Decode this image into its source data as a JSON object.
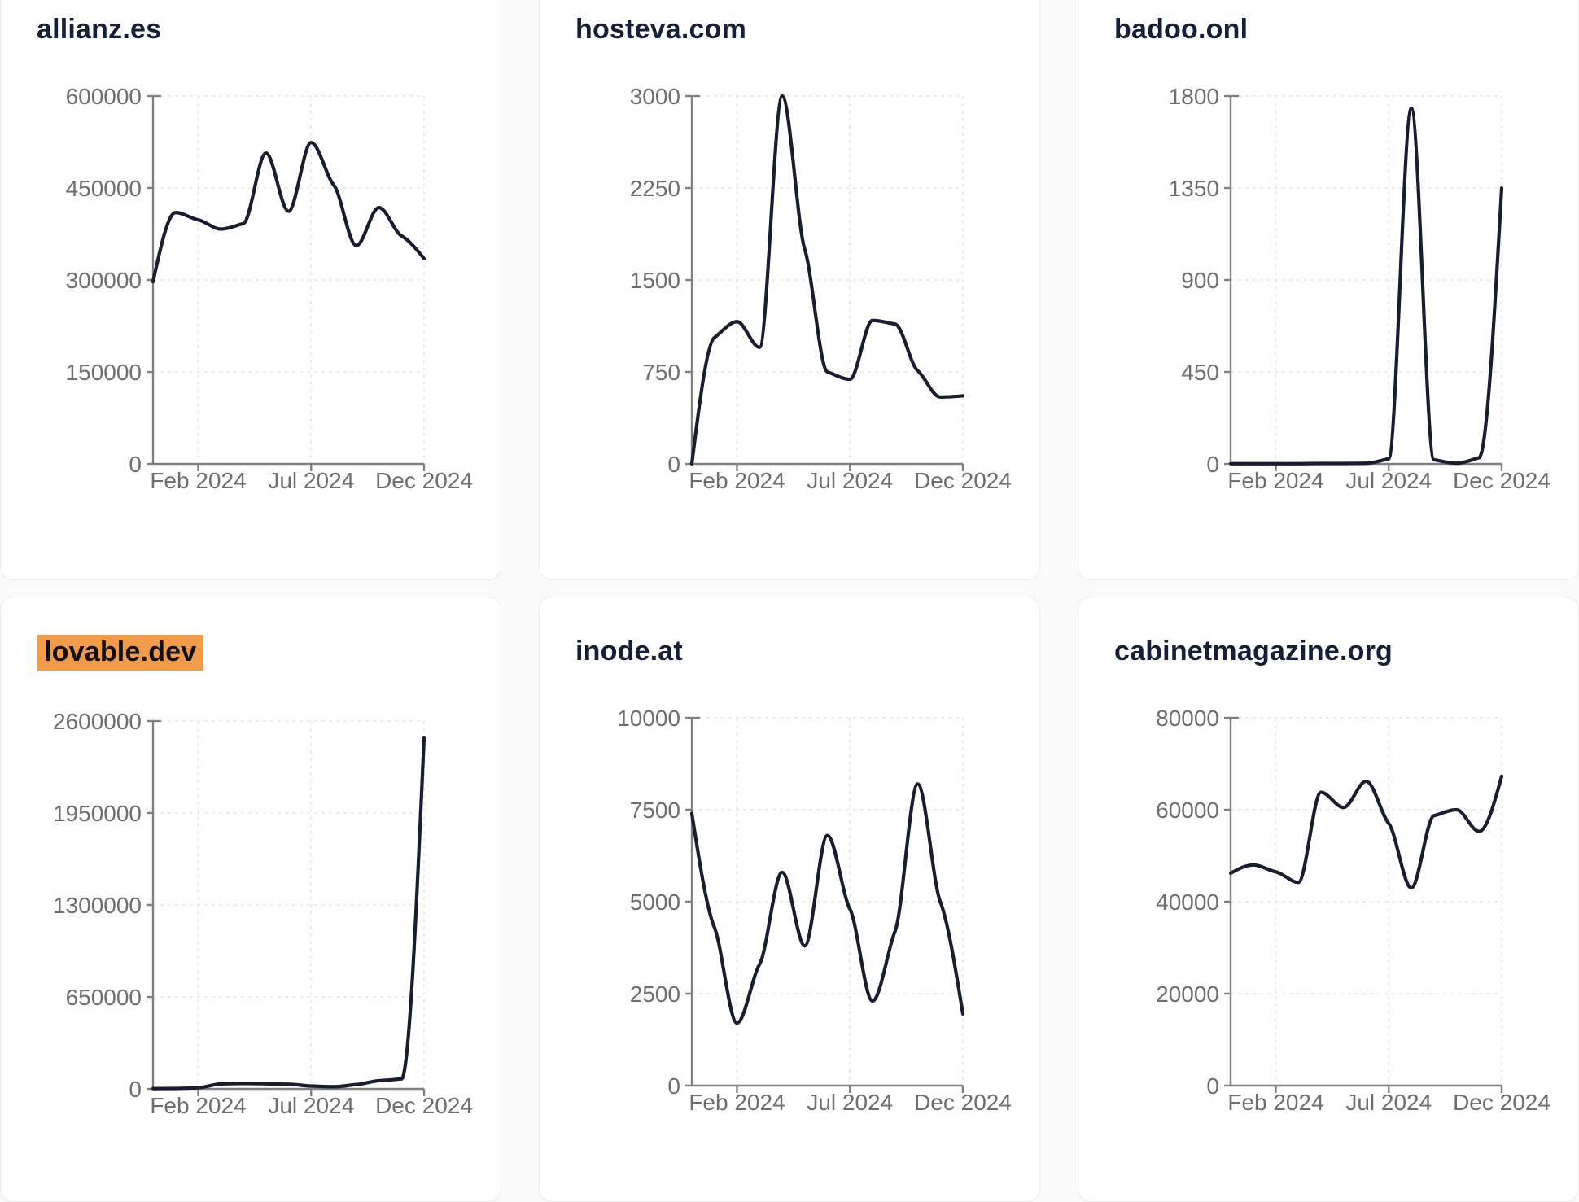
{
  "page": {
    "background_color": "#fafafa",
    "card_background": "#ffffff",
    "card_border_color": "#ececec"
  },
  "style": {
    "line_color": "#181e30",
    "axis_color": "#808080",
    "grid_color": "#e5e5e5",
    "tick_label_color": "#6e6e6e",
    "title_color": "#161f38",
    "highlight_color": "#ef9b4a"
  },
  "chart_data": [
    {
      "type": "line",
      "title": "allianz.es",
      "title_highlighted": false,
      "x": [
        "Dec 2023",
        "Jan 2024",
        "Feb 2024",
        "Mar 2024",
        "Apr 2024",
        "May 2024",
        "Jun 2024",
        "Jul 2024",
        "Aug 2024",
        "Sep 2024",
        "Oct 2024",
        "Nov 2024",
        "Dec 2024"
      ],
      "values": [
        297000,
        410000,
        398000,
        383000,
        392000,
        507000,
        412000,
        524000,
        455000,
        356000,
        418000,
        372000,
        335000
      ],
      "ylim": [
        0,
        600000
      ],
      "y_ticks": [
        0,
        150000,
        300000,
        450000,
        600000
      ],
      "x_tick_labels": [
        "Feb 2024",
        "Jul 2024",
        "Dec 2024"
      ],
      "x_tick_positions": [
        2,
        7,
        12
      ],
      "grid": true,
      "legend": "none"
    },
    {
      "type": "line",
      "title": "hosteva.com",
      "title_highlighted": false,
      "x": [
        "Dec 2023",
        "Jan 2024",
        "Feb 2024",
        "Mar 2024",
        "Apr 2024",
        "May 2024",
        "Jun 2024",
        "Jul 2024",
        "Aug 2024",
        "Sep 2024",
        "Oct 2024",
        "Nov 2024",
        "Dec 2024"
      ],
      "values": [
        0,
        1030,
        1160,
        950,
        3000,
        1750,
        750,
        690,
        1170,
        1140,
        760,
        545,
        555
      ],
      "ylim": [
        0,
        3000
      ],
      "y_ticks": [
        0,
        750,
        1500,
        2250,
        3000
      ],
      "x_tick_labels": [
        "Feb 2024",
        "Jul 2024",
        "Dec 2024"
      ],
      "x_tick_positions": [
        2,
        7,
        12
      ],
      "grid": true,
      "legend": "none"
    },
    {
      "type": "line",
      "title": "badoo.onl",
      "title_highlighted": false,
      "x": [
        "Dec 2023",
        "Jan 2024",
        "Feb 2024",
        "Mar 2024",
        "Apr 2024",
        "May 2024",
        "Jun 2024",
        "Jul 2024",
        "Aug 2024",
        "Sep 2024",
        "Oct 2024",
        "Nov 2024",
        "Dec 2024"
      ],
      "values": [
        1,
        1,
        1,
        1,
        2,
        2,
        3,
        25,
        1740,
        20,
        3,
        30,
        1350
      ],
      "ylim": [
        0,
        1800
      ],
      "y_ticks": [
        0,
        450,
        900,
        1350,
        1800
      ],
      "x_tick_labels": [
        "Feb 2024",
        "Jul 2024",
        "Dec 2024"
      ],
      "x_tick_positions": [
        2,
        7,
        12
      ],
      "grid": true,
      "legend": "none"
    },
    {
      "type": "line",
      "title": "lovable.dev",
      "title_highlighted": true,
      "x": [
        "Dec 2023",
        "Jan 2024",
        "Feb 2024",
        "Mar 2024",
        "Apr 2024",
        "May 2024",
        "Jun 2024",
        "Jul 2024",
        "Aug 2024",
        "Sep 2024",
        "Oct 2024",
        "Nov 2024",
        "Dec 2024"
      ],
      "values": [
        2000,
        3000,
        8000,
        35000,
        38000,
        36000,
        33000,
        20000,
        15000,
        30000,
        58000,
        70000,
        2480000
      ],
      "ylim": [
        0,
        2600000
      ],
      "y_ticks": [
        0,
        650000,
        1300000,
        1950000,
        2600000
      ],
      "x_tick_labels": [
        "Feb 2024",
        "Jul 2024",
        "Dec 2024"
      ],
      "x_tick_positions": [
        2,
        7,
        12
      ],
      "grid": true,
      "legend": "none"
    },
    {
      "type": "line",
      "title": "inode.at",
      "title_highlighted": false,
      "x": [
        "Dec 2023",
        "Jan 2024",
        "Feb 2024",
        "Mar 2024",
        "Apr 2024",
        "May 2024",
        "Jun 2024",
        "Jul 2024",
        "Aug 2024",
        "Sep 2024",
        "Oct 2024",
        "Nov 2024",
        "Dec 2024"
      ],
      "values": [
        7400,
        4300,
        1700,
        3300,
        5800,
        3800,
        6800,
        4800,
        2300,
        4200,
        8200,
        5000,
        1950
      ],
      "ylim": [
        0,
        10000
      ],
      "y_ticks": [
        0,
        2500,
        5000,
        7500,
        10000
      ],
      "x_tick_labels": [
        "Feb 2024",
        "Jul 2024",
        "Dec 2024"
      ],
      "x_tick_positions": [
        2,
        7,
        12
      ],
      "grid": true,
      "legend": "none"
    },
    {
      "type": "line",
      "title": "cabinetmagazine.org",
      "title_highlighted": false,
      "x": [
        "Dec 2023",
        "Jan 2024",
        "Feb 2024",
        "Mar 2024",
        "Apr 2024",
        "May 2024",
        "Jun 2024",
        "Jul 2024",
        "Aug 2024",
        "Sep 2024",
        "Oct 2024",
        "Nov 2024",
        "Dec 2024"
      ],
      "values": [
        46200,
        48000,
        46500,
        44200,
        63800,
        60500,
        66200,
        57000,
        43000,
        58700,
        60000,
        55300,
        67300
      ],
      "ylim": [
        0,
        80000
      ],
      "y_ticks": [
        0,
        20000,
        40000,
        60000,
        80000
      ],
      "x_tick_labels": [
        "Feb 2024",
        "Jul 2024",
        "Dec 2024"
      ],
      "x_tick_positions": [
        2,
        7,
        12
      ],
      "grid": true,
      "legend": "none"
    }
  ]
}
